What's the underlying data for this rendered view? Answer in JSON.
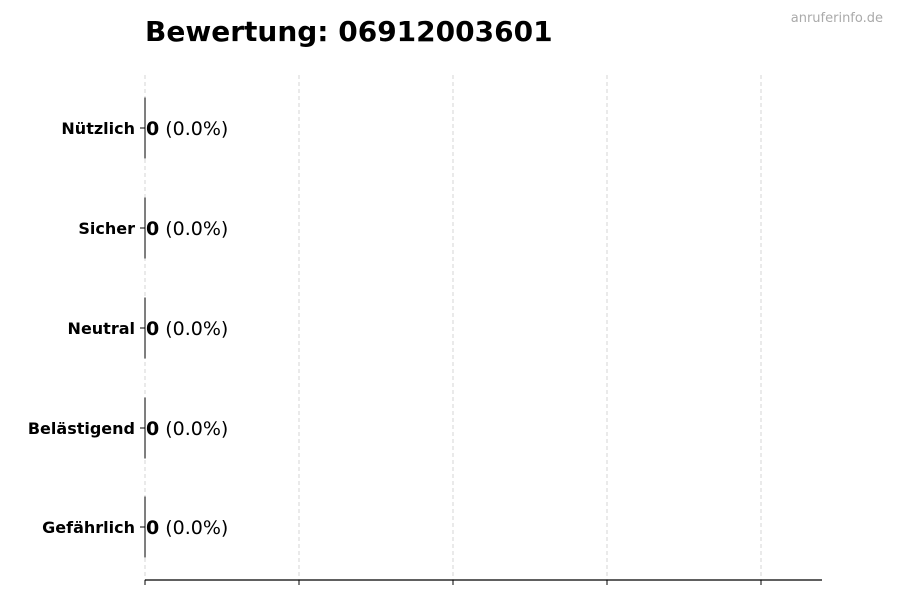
{
  "watermark": "anruferinfo.de",
  "chart_data": {
    "type": "bar",
    "orientation": "horizontal",
    "title": "Bewertung: 06912003601",
    "categories": [
      "Nützlich",
      "Sicher",
      "Neutral",
      "Belästigend",
      "Gefährlich"
    ],
    "values": [
      0,
      0,
      0,
      0,
      0
    ],
    "percentages": [
      "0.0%",
      "0.0%",
      "0.0%",
      "0.0%",
      "0.0%"
    ],
    "data_labels": [
      {
        "count": "0",
        "percent": "(0.0%)"
      },
      {
        "count": "0",
        "percent": "(0.0%)"
      },
      {
        "count": "0",
        "percent": "(0.0%)"
      },
      {
        "count": "0",
        "percent": "(0.0%)"
      },
      {
        "count": "0",
        "percent": "(0.0%)"
      }
    ],
    "xlabel": "",
    "ylabel": "",
    "x_tick_labels_shown": false,
    "grid": "vertical dashed",
    "colors": {
      "bar_edge": "#000000",
      "grid": "#cccccc",
      "watermark": "#aaaaaa"
    }
  }
}
